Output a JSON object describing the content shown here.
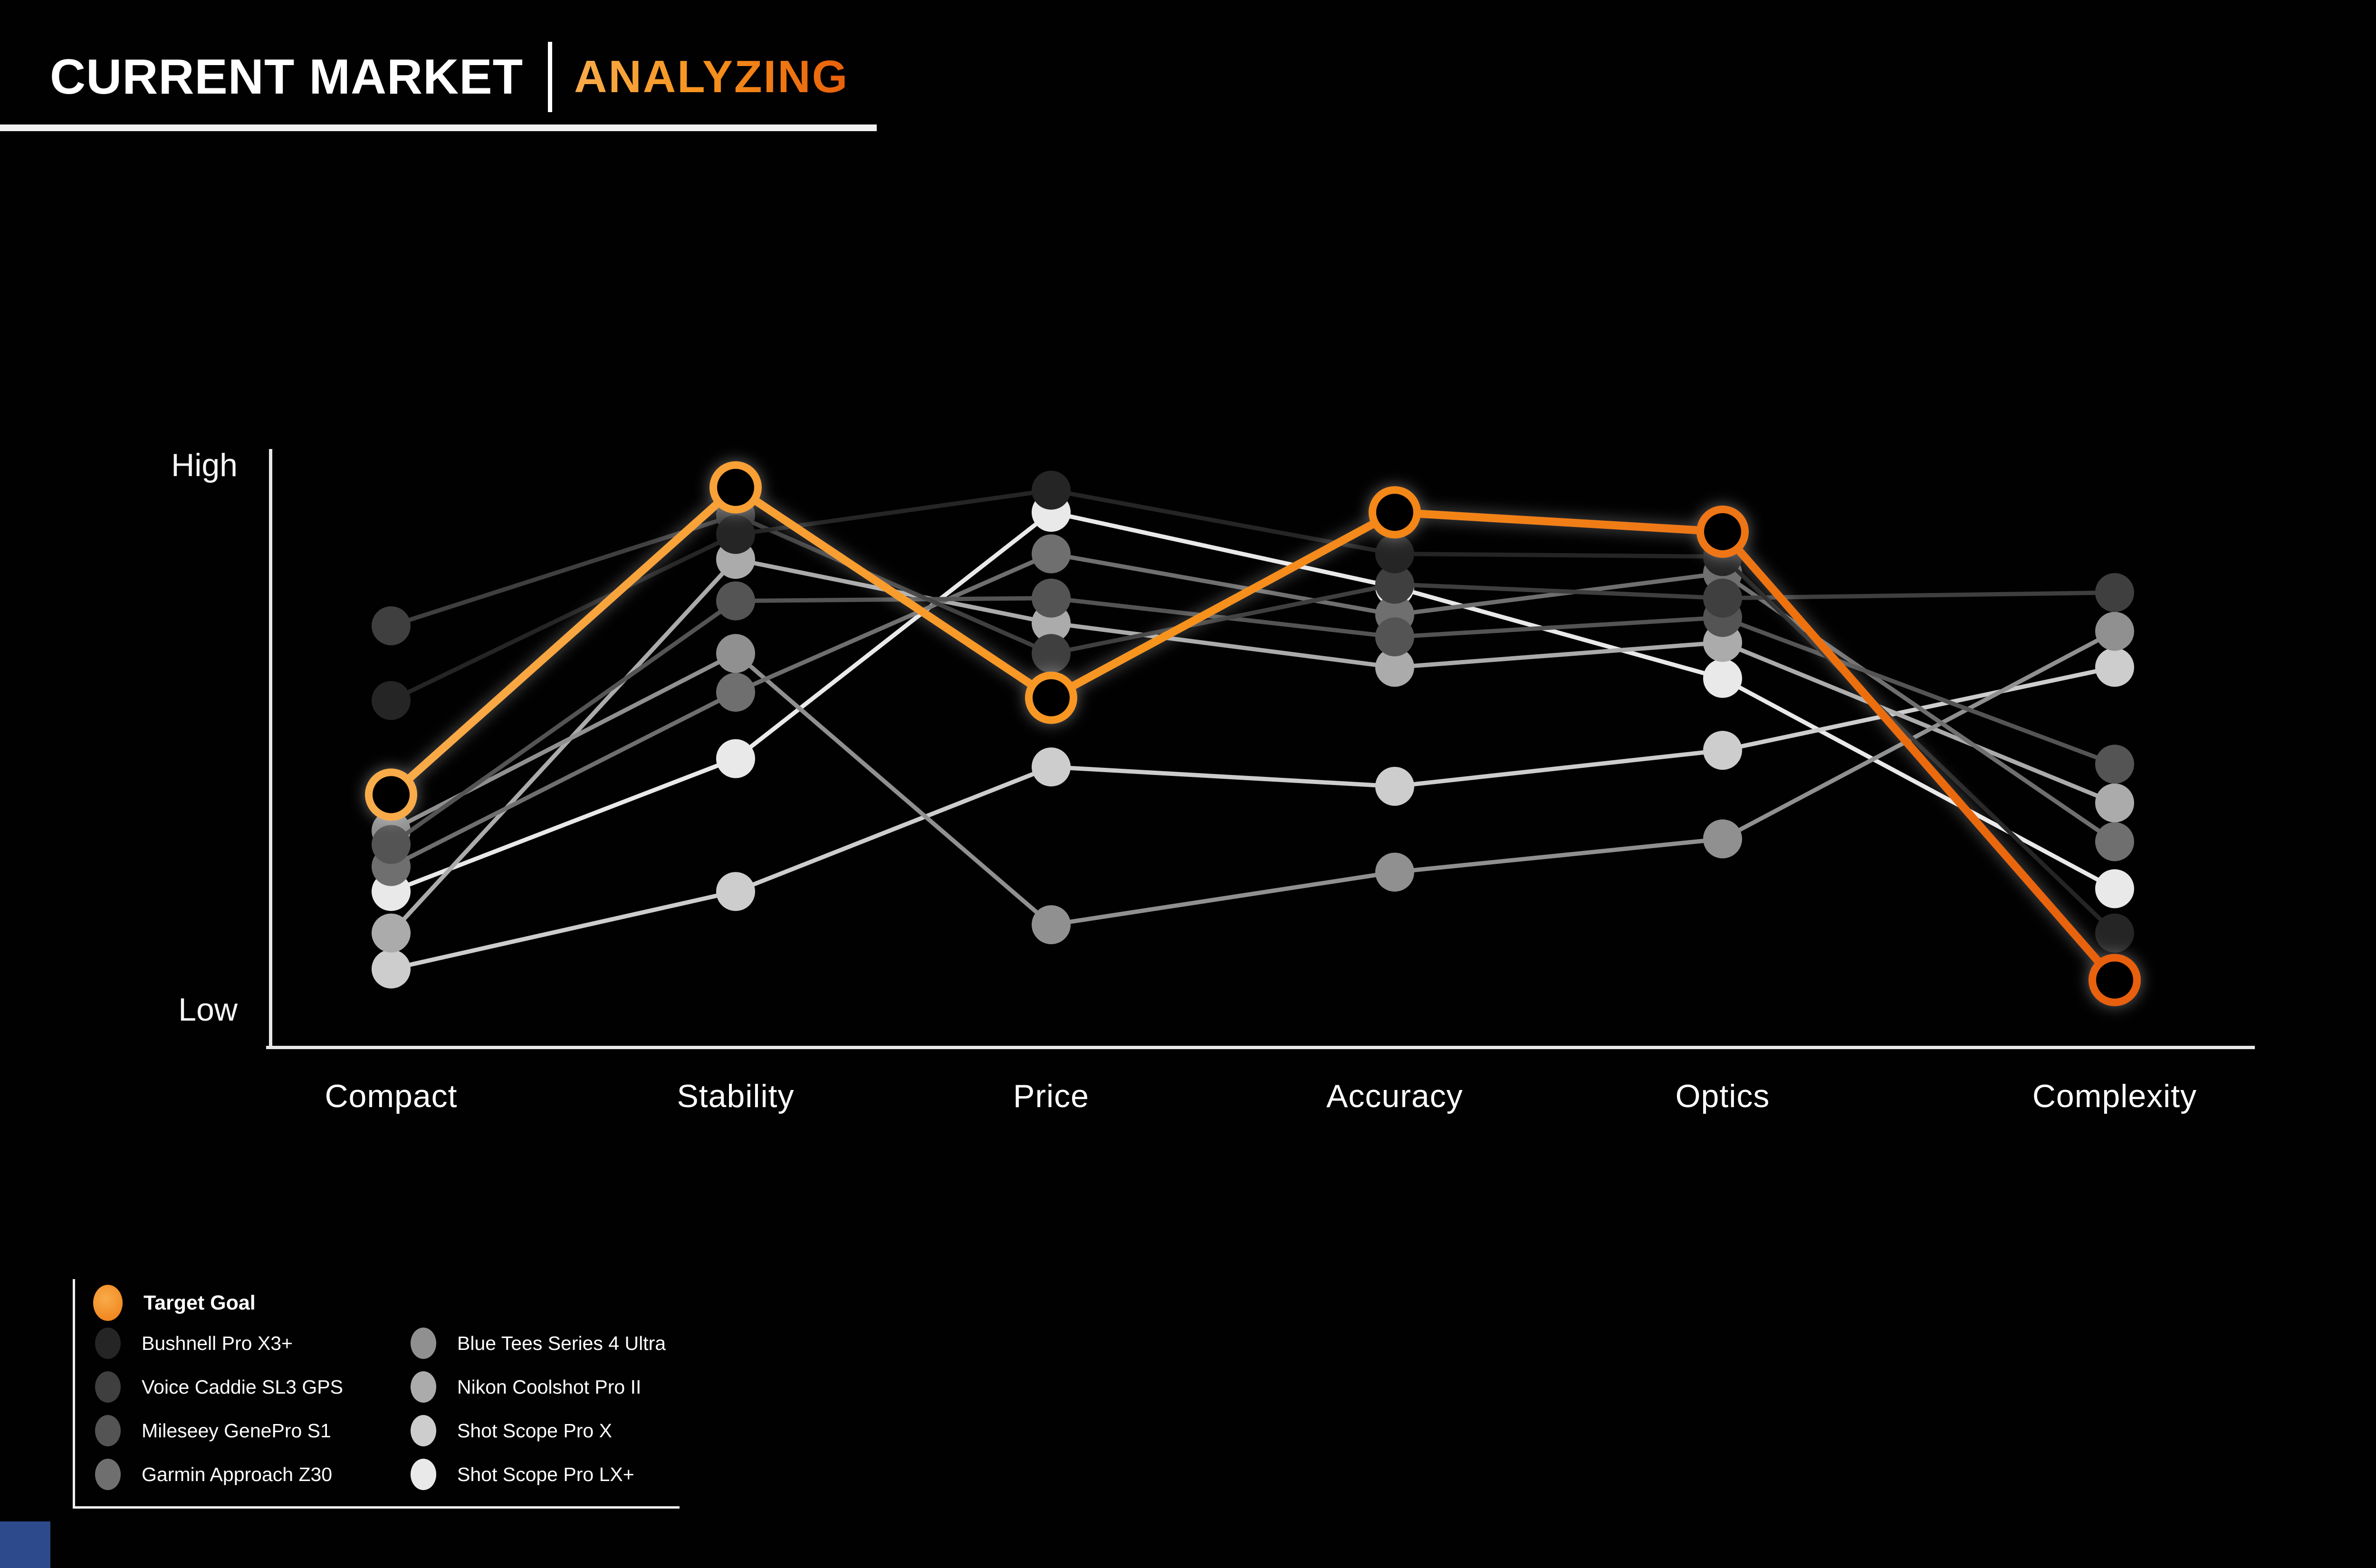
{
  "title": {
    "main": "CURRENT MARKET",
    "divider": "|",
    "accent": "ANALYZING"
  },
  "yaxis": {
    "high": "High",
    "low": "Low"
  },
  "chart_data": {
    "type": "line",
    "subtype": "parallel-coordinates-bump",
    "title": "CURRENT MARKET | ANALYZING",
    "categories": [
      "Compact",
      "Stability",
      "Price",
      "Accuracy",
      "Optics",
      "Complexity"
    ],
    "scale": {
      "min": 0,
      "max": 100,
      "min_label": "Low",
      "max_label": "High",
      "gridlines": false
    },
    "legend_position": "bottom-left",
    "target_series": {
      "name": "Target Goal",
      "color_start": "#F9AC4B",
      "color_mid": "#F7941E",
      "color_end": "#E8600A",
      "marker": "open-ring",
      "values": [
        41,
        96.5,
        58.5,
        92,
        88.5,
        7.5
      ]
    },
    "series": [
      {
        "name": "Bushnell Pro X3+",
        "color": "#252525",
        "values": [
          58,
          88,
          96,
          84.5,
          84,
          16
        ]
      },
      {
        "name": "Voice Caddie SL3 GPS",
        "color": "#3f3f3f",
        "values": [
          71.5,
          91.5,
          66.5,
          79,
          76.5,
          77.5
        ]
      },
      {
        "name": "Mileseey GenePro S1",
        "color": "#545454",
        "values": [
          32,
          76,
          76.5,
          69.5,
          73,
          46.5
        ]
      },
      {
        "name": "Garmin Approach Z30",
        "color": "#6f6f6f",
        "values": [
          28,
          59.5,
          84.5,
          73.5,
          81,
          32.5
        ]
      },
      {
        "name": "Blue Tees Series 4 Ultra",
        "color": "#909090",
        "values": [
          34.5,
          66.5,
          17.5,
          27,
          33,
          70.5
        ]
      },
      {
        "name": "Nikon Coolshot Pro II",
        "color": "#ababab",
        "values": [
          16,
          83.5,
          72,
          64,
          68.5,
          39.5
        ]
      },
      {
        "name": "Shot Scope Pro X",
        "color": "#cdcdcd",
        "values": [
          9.5,
          23.5,
          46,
          42.5,
          49,
          64
        ]
      },
      {
        "name": "Shot Scope Pro LX+",
        "color": "#e9e9e9",
        "values": [
          23.5,
          47.5,
          92,
          78.5,
          62,
          24
        ]
      }
    ]
  },
  "layout_colors": {
    "background": "#010101",
    "axis": "#e8e8e8",
    "text": "#ffffff",
    "corner_chip_blue": "#2d4b8c"
  }
}
